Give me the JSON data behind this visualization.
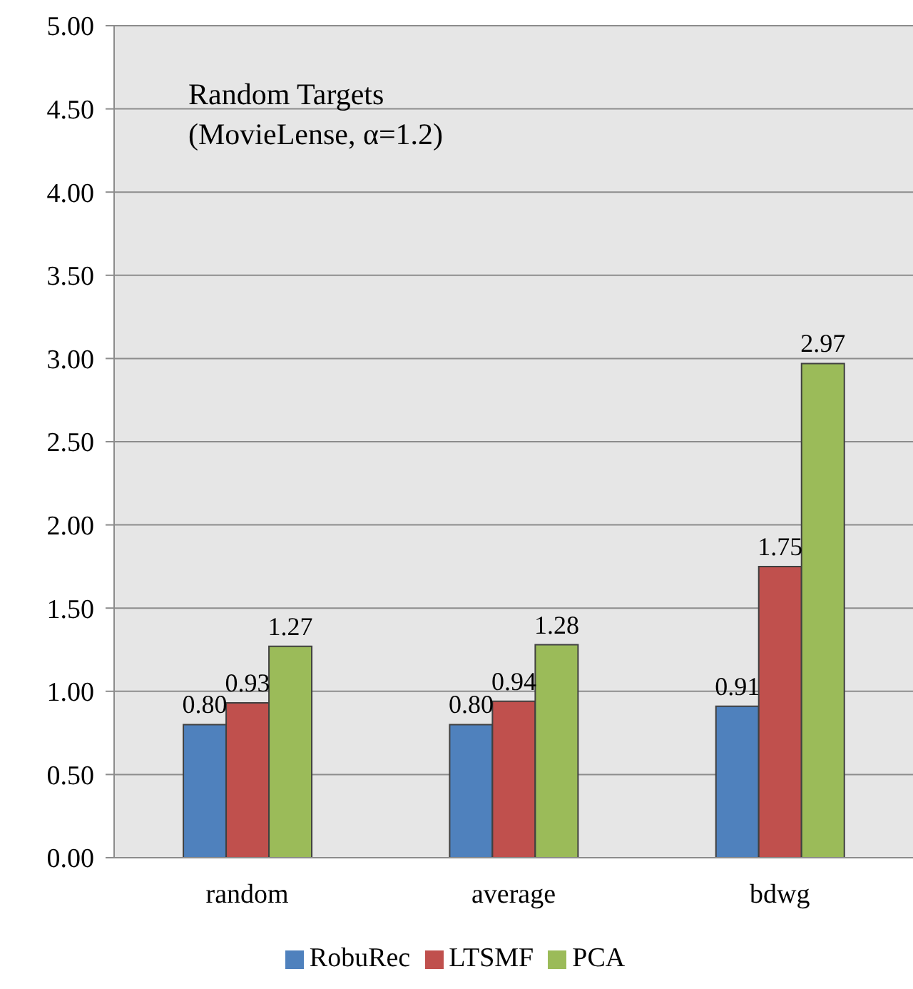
{
  "chart_data": {
    "type": "bar",
    "title": "Random Targets",
    "subtitle": "(MovieLense, α=1.2)",
    "categories": [
      "random",
      "average",
      "bdwg"
    ],
    "series": [
      {
        "name": "RobuRec",
        "color": "#4f81bd",
        "values": [
          0.8,
          0.8,
          0.91
        ],
        "value_labels": [
          "0.80",
          "0.80",
          "0.91"
        ]
      },
      {
        "name": "LTSMF",
        "color": "#c0504d",
        "values": [
          0.93,
          0.94,
          1.75
        ],
        "value_labels": [
          "0.93",
          "0.94",
          "1.75"
        ]
      },
      {
        "name": "PCA",
        "color": "#9bbb59",
        "values": [
          1.27,
          1.28,
          2.97
        ],
        "value_labels": [
          "1.27",
          "1.28",
          "2.97"
        ]
      }
    ],
    "ylim": [
      0,
      5
    ],
    "yticks": [
      {
        "value": 0,
        "label": "0.00"
      },
      {
        "value": 0.5,
        "label": "0.50"
      },
      {
        "value": 1,
        "label": "1.00"
      },
      {
        "value": 1.5,
        "label": "1.50"
      },
      {
        "value": 2,
        "label": "2.00"
      },
      {
        "value": 2.5,
        "label": "2.50"
      },
      {
        "value": 3,
        "label": "3.00"
      },
      {
        "value": 3.5,
        "label": "3.50"
      },
      {
        "value": 4,
        "label": "4.00"
      },
      {
        "value": 4.5,
        "label": "4.50"
      },
      {
        "value": 5,
        "label": "5.00"
      }
    ],
    "grid": "y",
    "legend": "bottom"
  }
}
